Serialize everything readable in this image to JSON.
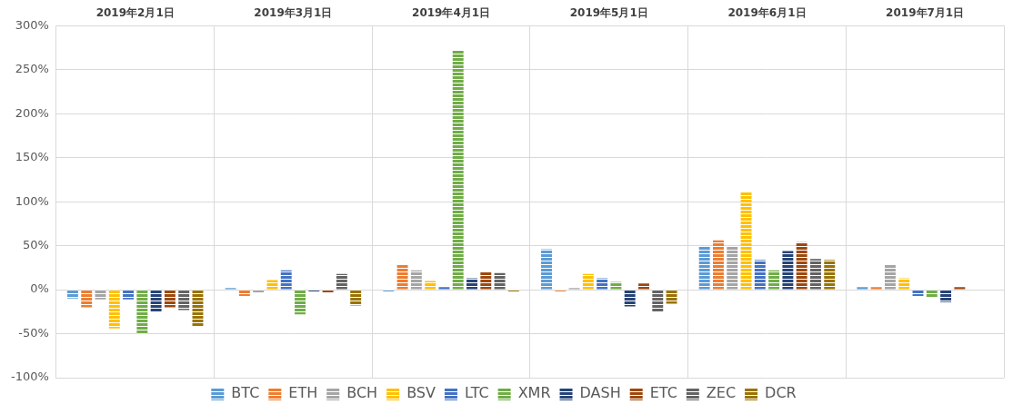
{
  "chart_data": {
    "type": "bar",
    "categories": [
      "2019年2月1日",
      "2019年3月1日",
      "2019年4月1日",
      "2019年5月1日",
      "2019年6月1日",
      "2019年7月1日"
    ],
    "series": [
      {
        "name": "BTC",
        "color": "#5B9BD5",
        "values": [
          -10,
          2,
          -2,
          46,
          49,
          3
        ]
      },
      {
        "name": "ETH",
        "color": "#ED7D31",
        "values": [
          -20,
          -7,
          29,
          -2,
          56,
          3
        ]
      },
      {
        "name": "BCH",
        "color": "#A5A5A5",
        "values": [
          -11,
          -3,
          22,
          2,
          49,
          28
        ]
      },
      {
        "name": "BSV",
        "color": "#FFC000",
        "values": [
          -44,
          11,
          10,
          18,
          111,
          13
        ]
      },
      {
        "name": "LTC",
        "color": "#4472C4",
        "values": [
          -11,
          22,
          3,
          13,
          34,
          -7
        ]
      },
      {
        "name": "XMR",
        "color": "#70AD47",
        "values": [
          -50,
          -28,
          272,
          9,
          22,
          -9
        ]
      },
      {
        "name": "DASH",
        "color": "#264478",
        "values": [
          -25,
          -2,
          13,
          -19,
          44,
          -14
        ]
      },
      {
        "name": "ETC",
        "color": "#9E480E",
        "values": [
          -20,
          -3,
          20,
          7,
          54,
          3
        ]
      },
      {
        "name": "ZEC",
        "color": "#636363",
        "values": [
          -23,
          18,
          19,
          -25,
          35,
          0
        ]
      },
      {
        "name": "DCR",
        "color": "#997300",
        "values": [
          -42,
          -18,
          -2,
          -16,
          34,
          0
        ]
      }
    ],
    "ylim": [
      -100,
      300
    ],
    "yticks": [
      {
        "value": -100,
        "label": "-100%"
      },
      {
        "value": -50,
        "label": "-50%"
      },
      {
        "value": 0,
        "label": "0%"
      },
      {
        "value": 50,
        "label": "50%"
      },
      {
        "value": 100,
        "label": "100%"
      },
      {
        "value": 150,
        "label": "150%"
      },
      {
        "value": 200,
        "label": "200%"
      },
      {
        "value": 250,
        "label": "250%"
      },
      {
        "value": 300,
        "label": "300%"
      }
    ],
    "grid": true,
    "legend": "bottom"
  }
}
